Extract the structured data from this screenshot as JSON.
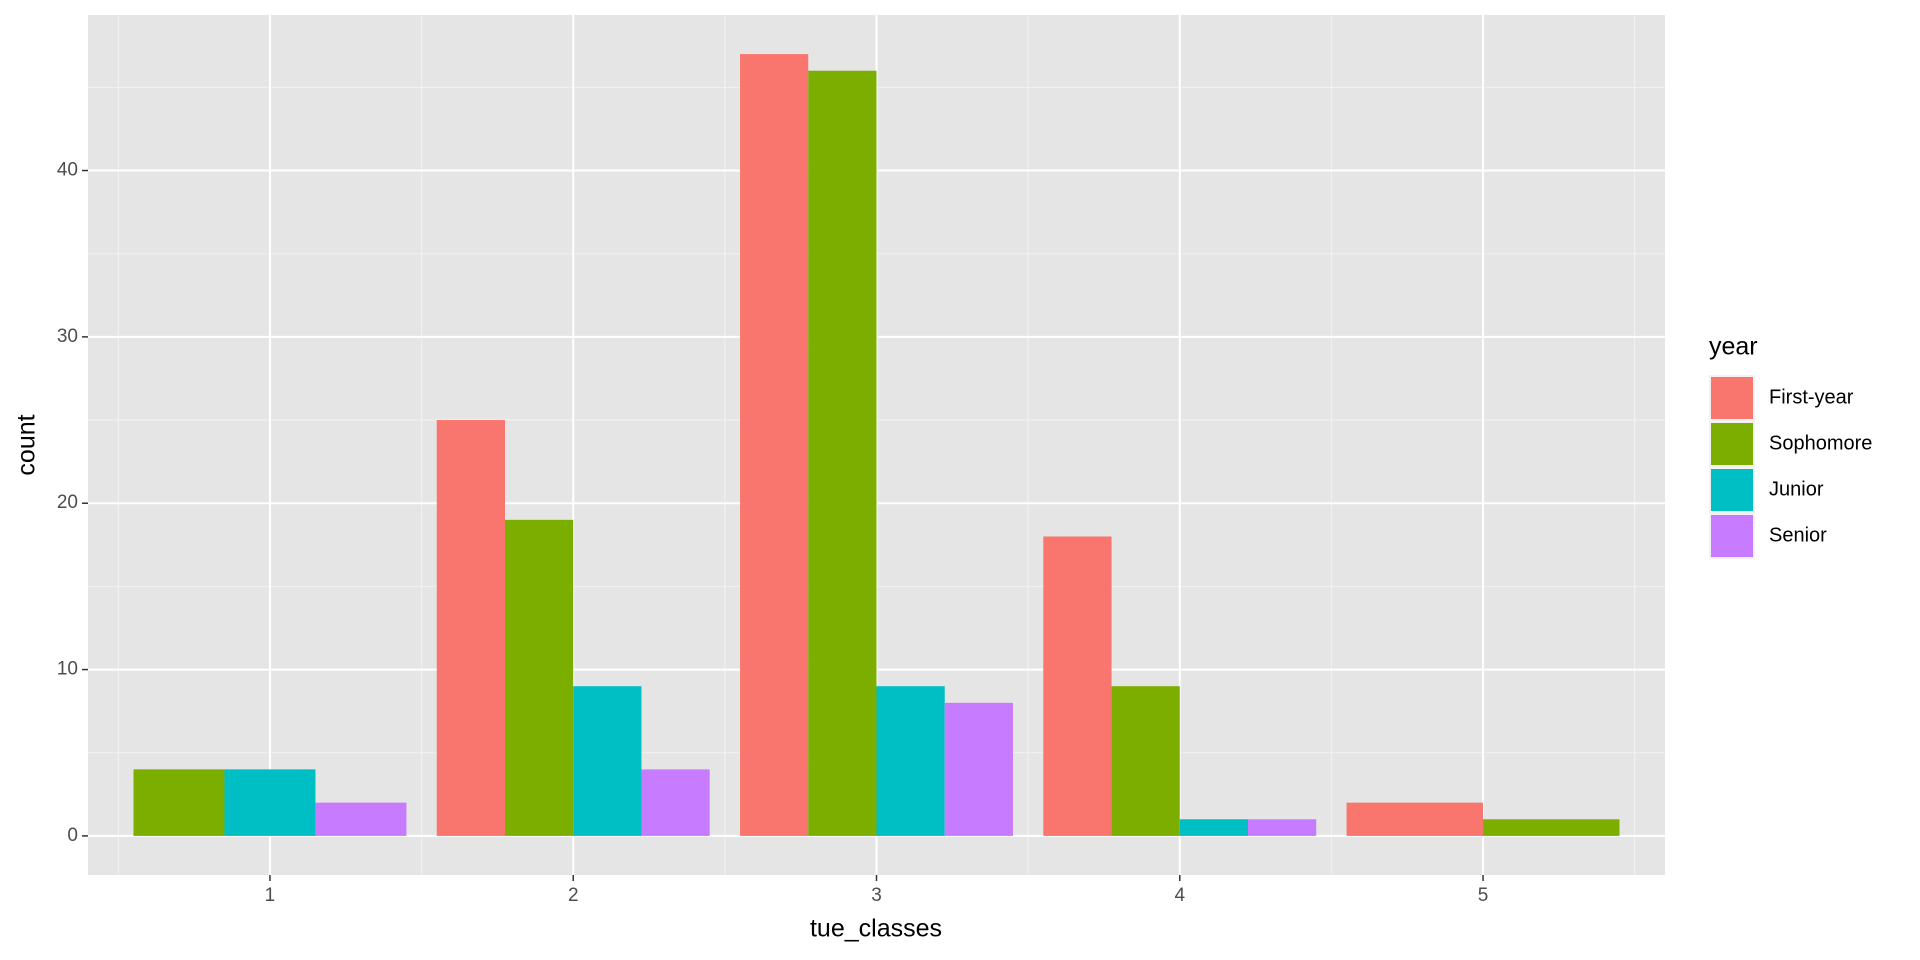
{
  "chart_data": {
    "type": "bar",
    "x_label": "tue_classes",
    "y_label": "count",
    "categories": [
      "1",
      "2",
      "3",
      "4",
      "5"
    ],
    "legend_title": "year",
    "legend_position": "right",
    "series": [
      {
        "name": "First-year",
        "color": "#f8766d",
        "values": [
          null,
          25,
          47,
          18,
          2
        ]
      },
      {
        "name": "Sophomore",
        "color": "#7cae00",
        "values": [
          4,
          19,
          46,
          9,
          1
        ]
      },
      {
        "name": "Junior",
        "color": "#00bfc4",
        "values": [
          4,
          9,
          9,
          1,
          null
        ]
      },
      {
        "name": "Senior",
        "color": "#c77cff",
        "values": [
          2,
          4,
          8,
          1,
          null
        ]
      }
    ],
    "ylim": [
      -2.35,
      49.35
    ],
    "yticks": [
      0,
      10,
      20,
      30,
      40
    ],
    "grid": true
  }
}
